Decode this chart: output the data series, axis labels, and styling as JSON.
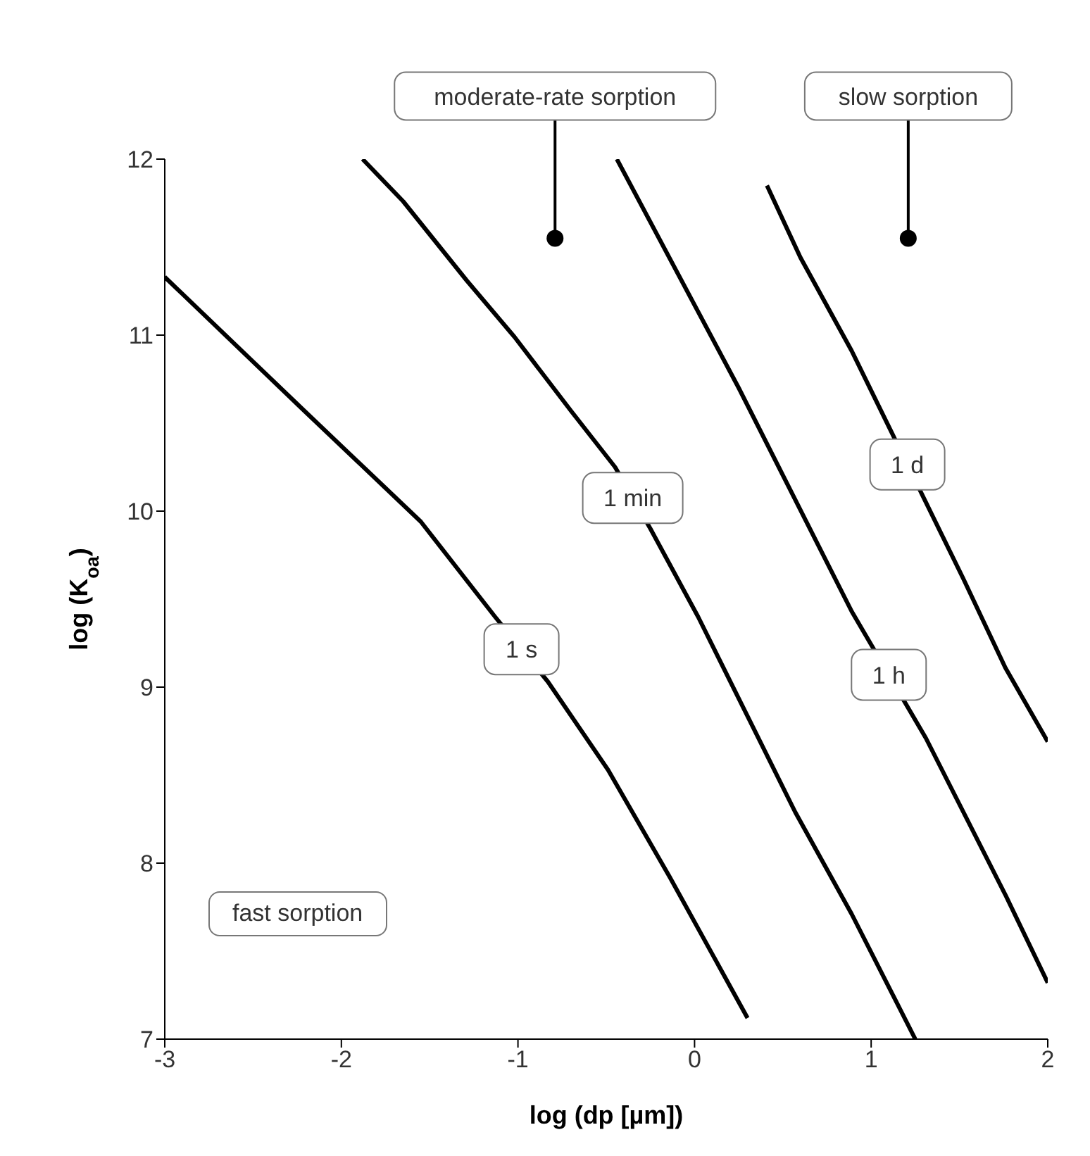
{
  "chart_data": {
    "type": "line",
    "xlabel": "log (dp [µm])",
    "ylabel": "log (K$_{oa}$)",
    "xlim": [
      -3,
      2
    ],
    "xticks": [
      -3,
      -2,
      -1,
      0,
      1,
      2
    ],
    "ylim": [
      7,
      12
    ],
    "yticks": [
      7,
      8,
      9,
      10,
      11,
      12
    ],
    "grid": false,
    "legend": false,
    "marker": "none",
    "line_style": "solid",
    "series": [
      {
        "name": "1 s",
        "color": "#000000",
        "x": [
          -3,
          -2.21,
          -1.55,
          -1.13,
          -0.83,
          -0.49,
          -0.14,
          0.3
        ],
        "values": [
          11.33,
          10.57,
          9.94,
          9.4,
          9.03,
          8.53,
          7.92,
          7.12
        ]
      },
      {
        "name": "1 min",
        "color": "#000000",
        "x": [
          -1.88,
          -1.65,
          -1.29,
          -1.02,
          -0.7,
          -0.45,
          -0.25,
          0.02,
          0.57,
          0.89,
          1.25
        ],
        "values": [
          12,
          11.76,
          11.31,
          10.99,
          10.57,
          10.25,
          9.9,
          9.4,
          8.29,
          7.71,
          7
        ]
      },
      {
        "name": "1 h",
        "color": "#000000",
        "x": [
          -0.44,
          0.25,
          0.89,
          1.31,
          1.76,
          2
        ],
        "values": [
          12,
          10.7,
          9.43,
          8.71,
          7.82,
          7.32
        ]
      },
      {
        "name": "1 d",
        "color": "#000000",
        "x": [
          0.41,
          0.6,
          0.89,
          1.52,
          1.76,
          2
        ],
        "values": [
          11.85,
          11.44,
          10.91,
          9.62,
          9.11,
          8.69
        ]
      }
    ],
    "annotations": [
      {
        "text": "moderate-rate sorption",
        "x": -0.79,
        "y": 11.55
      },
      {
        "text": "slow sorption",
        "x": 1.21,
        "y": 11.55
      },
      "fast sorption"
    ]
  }
}
